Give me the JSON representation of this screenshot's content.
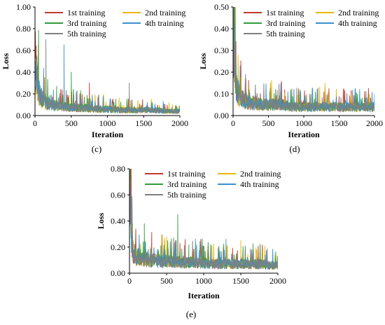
{
  "chart_data": [
    {
      "type": "line",
      "panel_label": "(c)",
      "xlabel": "Iteration",
      "ylabel": "Loss",
      "xlim": [
        0,
        2000
      ],
      "ylim": [
        0,
        1.0
      ],
      "x_ticks": [
        "0",
        "500",
        "1000",
        "1500",
        "2000"
      ],
      "y_ticks": [
        "0.00",
        "0.20",
        "0.40",
        "0.60",
        "0.80",
        "1.00"
      ],
      "legend_position": "top",
      "grid": false,
      "series": [
        {
          "name": "1st training",
          "color": "#c0392b",
          "x": [
            0,
            25,
            50,
            100,
            150,
            200,
            300,
            400,
            500,
            600,
            700,
            750,
            800,
            900,
            1000,
            1100,
            1200,
            1300,
            1400,
            1500,
            1600,
            1700,
            1800,
            1900,
            2000
          ],
          "y": [
            0.3,
            0.4,
            0.22,
            0.15,
            0.12,
            0.1,
            0.09,
            0.08,
            0.08,
            0.07,
            0.07,
            0.3,
            0.06,
            0.06,
            0.06,
            0.06,
            0.05,
            0.05,
            0.05,
            0.05,
            0.05,
            0.05,
            0.04,
            0.04,
            0.04
          ]
        },
        {
          "name": "2nd training",
          "color": "#e6b800",
          "x": [
            0,
            25,
            50,
            100,
            150,
            200,
            300,
            400,
            500,
            600,
            700,
            800,
            900,
            1000,
            1100,
            1200,
            1300,
            1400,
            1500,
            1600,
            1700,
            1800,
            1900,
            2000
          ],
          "y": [
            0.28,
            0.35,
            0.2,
            0.14,
            0.11,
            0.1,
            0.09,
            0.08,
            0.07,
            0.07,
            0.07,
            0.06,
            0.06,
            0.06,
            0.05,
            0.05,
            0.05,
            0.05,
            0.05,
            0.05,
            0.05,
            0.04,
            0.04,
            0.04
          ]
        },
        {
          "name": "3rd training",
          "color": "#2e9e3a",
          "x": [
            0,
            25,
            50,
            100,
            150,
            200,
            300,
            400,
            500,
            600,
            700,
            800,
            900,
            1000,
            1100,
            1200,
            1300,
            1400,
            1500,
            1600,
            1700,
            1800,
            1900,
            2000
          ],
          "y": [
            0.35,
            0.5,
            0.25,
            0.16,
            0.12,
            0.1,
            0.09,
            0.08,
            0.4,
            0.07,
            0.07,
            0.06,
            0.06,
            0.06,
            0.05,
            0.05,
            0.05,
            0.05,
            0.05,
            0.05,
            0.05,
            0.04,
            0.04,
            0.04
          ]
        },
        {
          "name": "4th training",
          "color": "#3a8fd0",
          "x": [
            0,
            25,
            50,
            100,
            150,
            200,
            300,
            400,
            500,
            600,
            700,
            800,
            900,
            1000,
            1100,
            1200,
            1300,
            1400,
            1500,
            1600,
            1700,
            1800,
            1900,
            2000
          ],
          "y": [
            0.32,
            0.45,
            0.23,
            0.15,
            0.12,
            0.1,
            0.09,
            0.65,
            0.08,
            0.07,
            0.07,
            0.06,
            0.06,
            0.06,
            0.05,
            0.05,
            0.05,
            0.05,
            0.05,
            0.05,
            0.05,
            0.04,
            0.04,
            0.04
          ]
        },
        {
          "name": "5th training",
          "color": "#808080",
          "x": [
            0,
            25,
            50,
            100,
            150,
            200,
            300,
            400,
            500,
            600,
            700,
            800,
            900,
            1000,
            1100,
            1200,
            1300,
            1400,
            1500,
            1600,
            1700,
            1800,
            1900,
            2000
          ],
          "y": [
            0.3,
            0.55,
            0.22,
            0.14,
            0.7,
            0.1,
            0.09,
            0.08,
            0.07,
            0.07,
            0.06,
            0.06,
            0.06,
            0.05,
            0.05,
            0.05,
            0.3,
            0.05,
            0.05,
            0.05,
            0.04,
            0.04,
            0.04,
            0.04
          ]
        }
      ]
    },
    {
      "type": "line",
      "panel_label": "(d)",
      "xlabel": "Iteration",
      "ylabel": "Loss",
      "xlim": [
        0,
        2000
      ],
      "ylim": [
        0,
        0.5
      ],
      "x_ticks": [
        "0",
        "500",
        "1000",
        "1500",
        "2000"
      ],
      "y_ticks": [
        "0.00",
        "0.10",
        "0.20",
        "0.30",
        "0.40",
        "0.50"
      ],
      "legend_position": "top",
      "grid": false,
      "series": [
        {
          "name": "1st training",
          "color": "#c0392b",
          "x": [
            0,
            25,
            50,
            100,
            150,
            200,
            300,
            400,
            500,
            600,
            700,
            800,
            900,
            1000,
            1100,
            1200,
            1300,
            1400,
            1500,
            1600,
            1700,
            1800,
            1900,
            2000
          ],
          "y": [
            0.35,
            0.25,
            0.12,
            0.09,
            0.07,
            0.06,
            0.06,
            0.05,
            0.05,
            0.05,
            0.05,
            0.04,
            0.04,
            0.04,
            0.04,
            0.04,
            0.13,
            0.04,
            0.04,
            0.04,
            0.04,
            0.04,
            0.04,
            0.04
          ]
        },
        {
          "name": "2nd training",
          "color": "#e6b800",
          "x": [
            0,
            25,
            50,
            100,
            150,
            200,
            300,
            400,
            500,
            600,
            700,
            800,
            900,
            1000,
            1100,
            1200,
            1300,
            1400,
            1500,
            1600,
            1700,
            1800,
            1900,
            2000
          ],
          "y": [
            0.3,
            0.22,
            0.11,
            0.08,
            0.07,
            0.06,
            0.05,
            0.05,
            0.05,
            0.05,
            0.05,
            0.04,
            0.04,
            0.04,
            0.04,
            0.04,
            0.15,
            0.04,
            0.04,
            0.04,
            0.04,
            0.04,
            0.04,
            0.04
          ]
        },
        {
          "name": "3rd training",
          "color": "#2e9e3a",
          "x": [
            0,
            25,
            50,
            100,
            150,
            200,
            300,
            400,
            500,
            600,
            700,
            800,
            900,
            1000,
            1100,
            1200,
            1300,
            1400,
            1500,
            1600,
            1700,
            1800,
            1900,
            2000
          ],
          "y": [
            0.4,
            0.28,
            0.13,
            0.09,
            0.07,
            0.06,
            0.06,
            0.05,
            0.05,
            0.12,
            0.05,
            0.04,
            0.04,
            0.04,
            0.04,
            0.04,
            0.04,
            0.04,
            0.04,
            0.04,
            0.04,
            0.04,
            0.04,
            0.04
          ]
        },
        {
          "name": "4th training",
          "color": "#3a8fd0",
          "x": [
            0,
            25,
            50,
            100,
            150,
            200,
            300,
            400,
            500,
            600,
            700,
            800,
            900,
            1000,
            1100,
            1200,
            1300,
            1400,
            1500,
            1600,
            1700,
            1800,
            1900,
            2000
          ],
          "y": [
            0.32,
            0.24,
            0.12,
            0.09,
            0.07,
            0.06,
            0.05,
            0.05,
            0.05,
            0.05,
            0.05,
            0.04,
            0.04,
            0.04,
            0.04,
            0.04,
            0.04,
            0.04,
            0.04,
            0.04,
            0.04,
            0.04,
            0.04,
            0.04
          ]
        },
        {
          "name": "5th training",
          "color": "#808080",
          "x": [
            0,
            25,
            50,
            100,
            150,
            200,
            300,
            400,
            500,
            600,
            700,
            800,
            900,
            1000,
            1100,
            1200,
            1300,
            1400,
            1500,
            1600,
            1700,
            1800,
            1900,
            2000
          ],
          "y": [
            0.48,
            0.26,
            0.12,
            0.09,
            0.07,
            0.06,
            0.05,
            0.05,
            0.05,
            0.05,
            0.04,
            0.04,
            0.04,
            0.04,
            0.04,
            0.04,
            0.04,
            0.04,
            0.04,
            0.04,
            0.04,
            0.04,
            0.04,
            0.04
          ]
        }
      ]
    },
    {
      "type": "line",
      "panel_label": "(e)",
      "xlabel": "Iteration",
      "ylabel": "Loss",
      "xlim": [
        0,
        2000
      ],
      "ylim": [
        0,
        0.8
      ],
      "x_ticks": [
        "0",
        "500",
        "1000",
        "1500",
        "2000"
      ],
      "y_ticks": [
        "0.00",
        "0.20",
        "0.40",
        "0.60",
        "0.80"
      ],
      "legend_position": "top",
      "grid": false,
      "series": [
        {
          "name": "1st training",
          "color": "#c0392b",
          "x": [
            0,
            10,
            25,
            50,
            100,
            150,
            200,
            300,
            400,
            500,
            600,
            700,
            800,
            900,
            1000,
            1100,
            1200,
            1300,
            1400,
            1500,
            1600,
            1700,
            1800,
            1900,
            2000
          ],
          "y": [
            0.4,
            0.75,
            0.3,
            0.16,
            0.12,
            0.11,
            0.1,
            0.1,
            0.09,
            0.09,
            0.09,
            0.08,
            0.08,
            0.08,
            0.08,
            0.07,
            0.07,
            0.07,
            0.07,
            0.07,
            0.07,
            0.07,
            0.07,
            0.06,
            0.06
          ]
        },
        {
          "name": "2nd training",
          "color": "#e6b800",
          "x": [
            0,
            10,
            25,
            50,
            100,
            150,
            200,
            300,
            400,
            500,
            600,
            700,
            800,
            900,
            1000,
            1100,
            1200,
            1300,
            1400,
            1500,
            1600,
            1700,
            1800,
            1900,
            2000
          ],
          "y": [
            0.38,
            0.7,
            0.28,
            0.15,
            0.12,
            0.11,
            0.1,
            0.1,
            0.09,
            0.28,
            0.09,
            0.08,
            0.08,
            0.08,
            0.08,
            0.07,
            0.07,
            0.07,
            0.07,
            0.25,
            0.07,
            0.07,
            0.07,
            0.06,
            0.06
          ]
        },
        {
          "name": "3rd training",
          "color": "#2e9e3a",
          "x": [
            0,
            10,
            25,
            50,
            100,
            150,
            200,
            300,
            400,
            500,
            600,
            650,
            700,
            800,
            900,
            1000,
            1100,
            1200,
            1300,
            1400,
            1500,
            1600,
            1700,
            1800,
            1900,
            2000
          ],
          "y": [
            0.42,
            0.78,
            0.32,
            0.17,
            0.13,
            0.12,
            0.38,
            0.1,
            0.1,
            0.09,
            0.09,
            0.45,
            0.08,
            0.08,
            0.08,
            0.08,
            0.07,
            0.07,
            0.07,
            0.07,
            0.07,
            0.07,
            0.07,
            0.07,
            0.06,
            0.06
          ]
        },
        {
          "name": "4th training",
          "color": "#3a8fd0",
          "x": [
            0,
            10,
            25,
            50,
            100,
            150,
            200,
            300,
            400,
            500,
            600,
            700,
            800,
            900,
            1000,
            1100,
            1200,
            1300,
            1400,
            1500,
            1600,
            1700,
            1800,
            1900,
            2000
          ],
          "y": [
            0.36,
            0.65,
            0.27,
            0.15,
            0.12,
            0.11,
            0.1,
            0.1,
            0.09,
            0.09,
            0.09,
            0.08,
            0.08,
            0.08,
            0.08,
            0.07,
            0.07,
            0.26,
            0.07,
            0.07,
            0.07,
            0.07,
            0.07,
            0.06,
            0.06
          ]
        },
        {
          "name": "5th training",
          "color": "#808080",
          "x": [
            0,
            10,
            25,
            50,
            100,
            150,
            200,
            300,
            400,
            500,
            600,
            700,
            800,
            900,
            1000,
            1100,
            1200,
            1300,
            1400,
            1500,
            1600,
            1700,
            1800,
            1900,
            2000
          ],
          "y": [
            0.4,
            0.72,
            0.3,
            0.16,
            0.12,
            0.11,
            0.1,
            0.1,
            0.09,
            0.09,
            0.09,
            0.08,
            0.08,
            0.08,
            0.08,
            0.07,
            0.07,
            0.07,
            0.07,
            0.07,
            0.07,
            0.07,
            0.07,
            0.06,
            0.06
          ]
        }
      ]
    }
  ]
}
